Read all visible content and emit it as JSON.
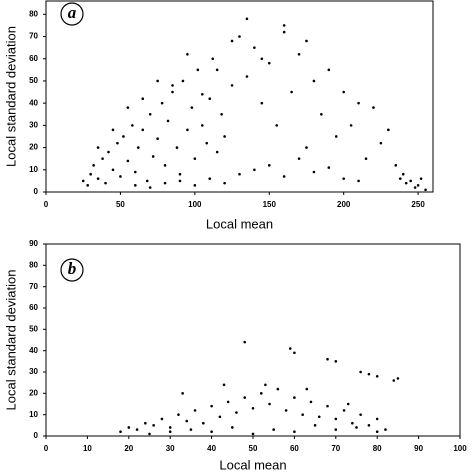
{
  "chart_data": [
    {
      "type": "scatter",
      "panel_label": "a",
      "xlabel": "Local mean",
      "ylabel": "Local standard deviation",
      "color": "#000000",
      "xlim": [
        0,
        260
      ],
      "xticks": [
        0,
        50,
        100,
        150,
        200,
        250
      ],
      "ylim": [
        0,
        86
      ],
      "yticks": [
        0,
        10,
        20,
        30,
        40,
        50,
        60,
        70,
        80
      ],
      "x": [
        25,
        28,
        30,
        32,
        35,
        38,
        40,
        42,
        45,
        48,
        50,
        52,
        55,
        58,
        60,
        62,
        65,
        68,
        70,
        72,
        75,
        78,
        80,
        82,
        85,
        88,
        90,
        92,
        95,
        98,
        100,
        102,
        105,
        108,
        110,
        112,
        115,
        118,
        120,
        125,
        130,
        135,
        140,
        145,
        150,
        155,
        160,
        165,
        170,
        175,
        180,
        185,
        190,
        195,
        200,
        205,
        210,
        215,
        220,
        225,
        230,
        235,
        240,
        245,
        250,
        252,
        60,
        70,
        80,
        90,
        100,
        110,
        120,
        130,
        140,
        150,
        160,
        170,
        180,
        190,
        200,
        210,
        85,
        95,
        105,
        115,
        125,
        135,
        145,
        55,
        65,
        75,
        45,
        35,
        242,
        248,
        255,
        238,
        160,
        175
      ],
      "values": [
        5,
        3,
        8,
        12,
        6,
        15,
        4,
        18,
        10,
        22,
        7,
        25,
        14,
        30,
        9,
        20,
        28,
        5,
        35,
        16,
        24,
        40,
        12,
        32,
        45,
        20,
        8,
        50,
        28,
        38,
        15,
        55,
        30,
        22,
        42,
        60,
        18,
        35,
        25,
        48,
        70,
        78,
        65,
        40,
        58,
        30,
        72,
        45,
        62,
        20,
        50,
        35,
        55,
        25,
        45,
        30,
        40,
        15,
        38,
        22,
        28,
        12,
        8,
        5,
        3,
        6,
        3,
        2,
        4,
        5,
        3,
        6,
        4,
        8,
        10,
        12,
        7,
        15,
        9,
        11,
        6,
        5,
        48,
        62,
        44,
        55,
        68,
        52,
        60,
        38,
        42,
        50,
        28,
        20,
        4,
        2,
        1,
        6,
        75,
        68
      ]
    },
    {
      "type": "scatter",
      "panel_label": "b",
      "xlabel": "Local mean",
      "ylabel": "Local standard deviation",
      "color": "#000000",
      "xlim": [
        0,
        100
      ],
      "xticks": [
        0,
        10,
        20,
        30,
        40,
        50,
        60,
        70,
        80,
        90,
        100
      ],
      "ylim": [
        0,
        90
      ],
      "yticks": [
        0,
        10,
        20,
        30,
        40,
        50,
        60,
        70,
        80,
        90
      ],
      "x": [
        18,
        20,
        22,
        24,
        26,
        28,
        30,
        32,
        34,
        36,
        38,
        40,
        42,
        44,
        46,
        48,
        50,
        52,
        54,
        56,
        58,
        60,
        62,
        64,
        66,
        68,
        70,
        72,
        74,
        76,
        78,
        80,
        82,
        25,
        30,
        35,
        40,
        45,
        50,
        55,
        60,
        65,
        70,
        75,
        80,
        33,
        43,
        53,
        63,
        73,
        48,
        59,
        60,
        68,
        70,
        76,
        78,
        80,
        84,
        85
      ],
      "values": [
        2,
        4,
        3,
        6,
        5,
        8,
        4,
        10,
        7,
        12,
        6,
        14,
        9,
        16,
        11,
        18,
        13,
        20,
        15,
        22,
        12,
        18,
        10,
        16,
        9,
        14,
        8,
        12,
        6,
        10,
        5,
        8,
        3,
        1,
        2,
        3,
        2,
        4,
        1,
        3,
        2,
        5,
        3,
        4,
        2,
        20,
        24,
        24,
        22,
        15,
        44,
        41,
        39,
        36,
        35,
        30,
        29,
        28,
        26,
        27
      ]
    }
  ]
}
